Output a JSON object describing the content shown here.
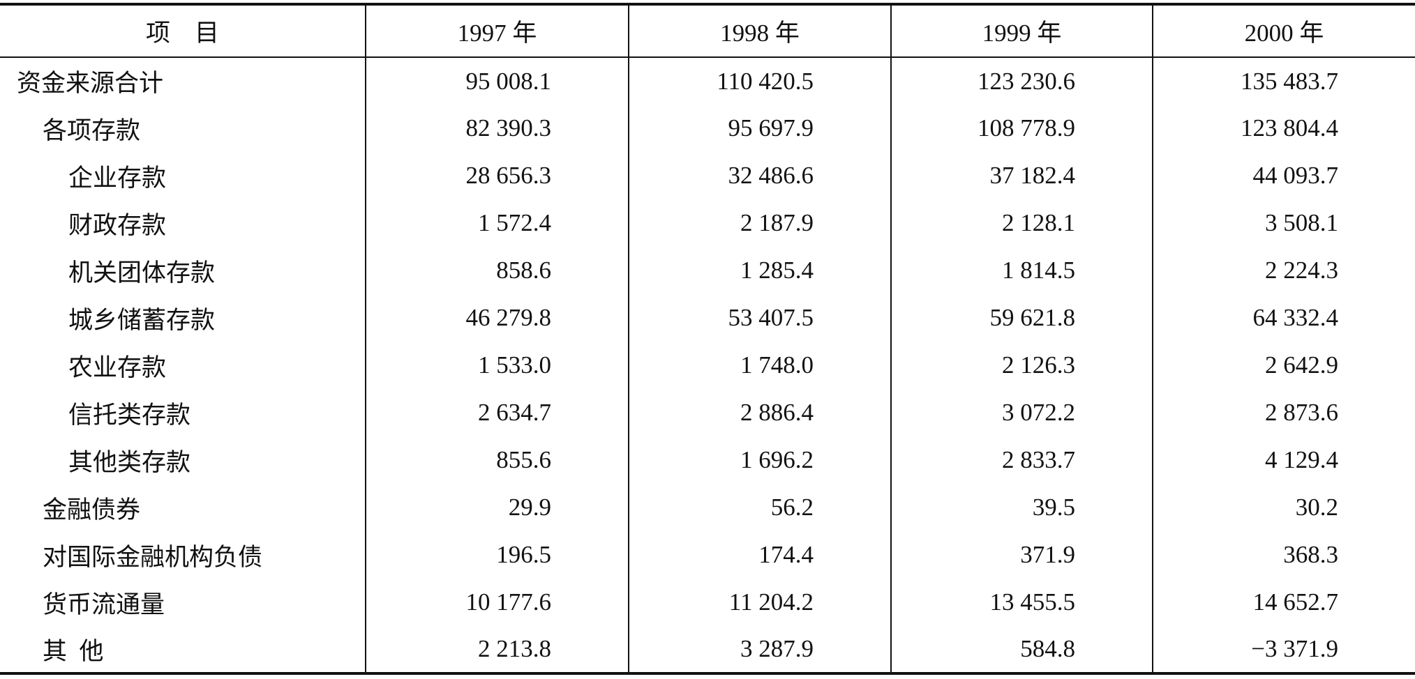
{
  "table": {
    "header": [
      "项    目",
      "1997 年",
      "1998 年",
      "1999 年",
      "2000 年"
    ],
    "rows": [
      [
        "资金来源合计",
        "95 008.1",
        "110 420.5",
        "123 230.6",
        "135 483.7"
      ],
      [
        "各项存款",
        "82 390.3",
        "95 697.9",
        "108 778.9",
        "123 804.4"
      ],
      [
        "企业存款",
        "28 656.3",
        "32 486.6",
        "37 182.4",
        "44 093.7"
      ],
      [
        "财政存款",
        "1 572.4",
        "2 187.9",
        "2 128.1",
        "3 508.1"
      ],
      [
        "机关团体存款",
        "858.6",
        "1 285.4",
        "1 814.5",
        "2 224.3"
      ],
      [
        "城乡储蓄存款",
        "46 279.8",
        "53 407.5",
        "59 621.8",
        "64 332.4"
      ],
      [
        "农业存款",
        "1 533.0",
        "1 748.0",
        "2 126.3",
        "2 642.9"
      ],
      [
        "信托类存款",
        "2 634.7",
        "2 886.4",
        "3 072.2",
        "2 873.6"
      ],
      [
        "其他类存款",
        "855.6",
        "1 696.2",
        "2 833.7",
        "4 129.4"
      ],
      [
        "金融债券",
        "29.9",
        "56.2",
        "39.5",
        "30.2"
      ],
      [
        "对国际金融机构负债",
        "196.5",
        "174.4",
        "371.9",
        "368.3"
      ],
      [
        "货币流通量",
        "10 177.6",
        "11 204.2",
        "13 455.5",
        "14 652.7"
      ],
      [
        "其  他",
        "2 213.8",
        "3 287.9",
        "584.8",
        "−3 371.9"
      ]
    ]
  }
}
